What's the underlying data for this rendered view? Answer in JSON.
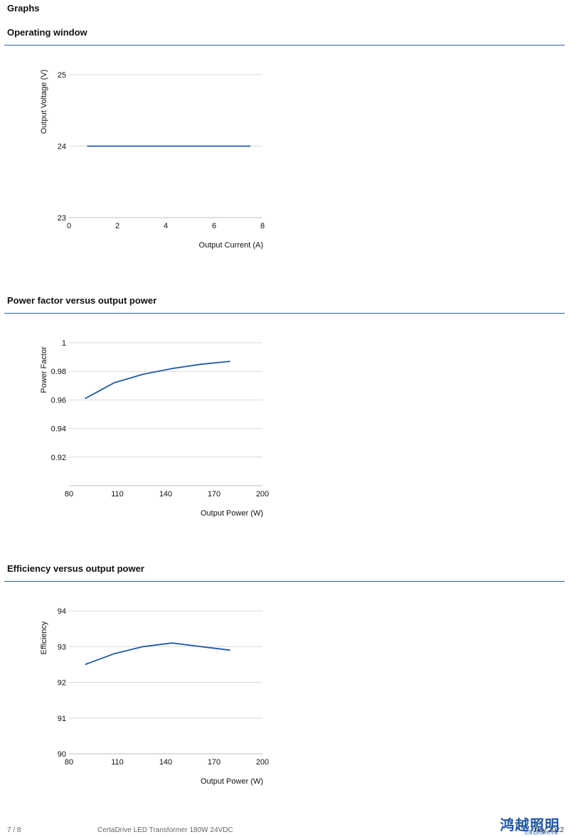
{
  "page": {
    "title": "Graphs",
    "footer_page": "7 / 8",
    "footer_product": "CertaDrive LED Transformer 180W 24VDC",
    "footer_date": "July 2022",
    "logo_text": "鸿越照明",
    "logo_subtext": "您身边的照明专家"
  },
  "sections": [
    {
      "title": "Operating window"
    },
    {
      "title": "Power factor versus output power"
    },
    {
      "title": "Efficiency versus output power"
    }
  ],
  "colors": {
    "series": "#1f5ba8",
    "rule": "#2f5fa5",
    "grid": "#d9d9d9"
  },
  "chart_data": [
    {
      "type": "line",
      "xlabel": "Output Current (A)",
      "ylabel": "Output Voltage (V)",
      "xlim": [
        0,
        8
      ],
      "ylim": [
        23,
        25
      ],
      "xticks": [
        0,
        2,
        4,
        6,
        8
      ],
      "yticks": [
        23,
        24,
        25
      ],
      "grid": true,
      "series": [
        {
          "x": [
            0.75,
            7.5
          ],
          "y": [
            24,
            24
          ]
        }
      ]
    },
    {
      "type": "line",
      "xlabel": "Output Power (W)",
      "ylabel": "Power Factor",
      "xlim": [
        80,
        200
      ],
      "ylim": [
        0.9,
        1
      ],
      "xticks": [
        80,
        110,
        140,
        170,
        200
      ],
      "yticks": [
        0.92,
        0.94,
        0.96,
        0.98,
        1
      ],
      "grid": true,
      "series": [
        {
          "x": [
            90,
            108,
            126,
            144,
            162,
            180
          ],
          "y": [
            0.961,
            0.972,
            0.978,
            0.982,
            0.985,
            0.987
          ]
        }
      ]
    },
    {
      "type": "line",
      "xlabel": "Output Power (W)",
      "ylabel": "Efficiency",
      "xlim": [
        80,
        200
      ],
      "ylim": [
        90,
        94
      ],
      "xticks": [
        80,
        110,
        140,
        170,
        200
      ],
      "yticks": [
        90,
        91,
        92,
        93,
        94
      ],
      "grid": true,
      "series": [
        {
          "x": [
            90,
            108,
            126,
            144,
            162,
            180
          ],
          "y": [
            92.5,
            92.8,
            93.0,
            93.1,
            93.0,
            92.9
          ]
        }
      ]
    }
  ]
}
